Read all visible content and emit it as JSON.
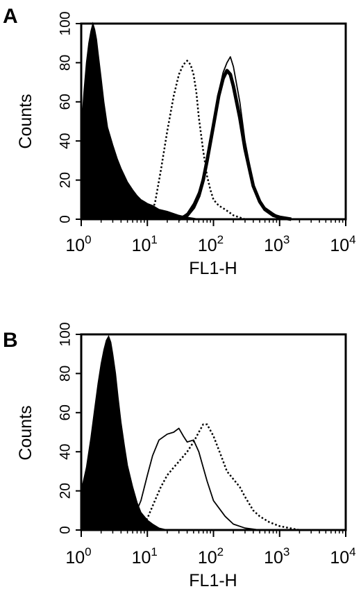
{
  "chart_data": [
    {
      "panel": "A",
      "type": "area",
      "xlabel": "FL1-H",
      "ylabel": "Counts",
      "xscale": "log",
      "xlim": [
        1,
        10000
      ],
      "ylim": [
        0,
        100
      ],
      "x_ticks": [
        {
          "base": "10",
          "exp": "0"
        },
        {
          "base": "10",
          "exp": "1"
        },
        {
          "base": "10",
          "exp": "2"
        },
        {
          "base": "10",
          "exp": "3"
        },
        {
          "base": "10",
          "exp": "4"
        }
      ],
      "y_ticks": [
        "0",
        "20",
        "40",
        "60",
        "80",
        "100"
      ],
      "grid": false,
      "series": [
        {
          "style": "filled-black",
          "x": [
            1,
            1.1,
            1.2,
            1.3,
            1.4,
            1.5,
            1.6,
            1.7,
            1.8,
            2,
            2.2,
            2.5,
            3,
            3.5,
            4,
            5,
            6,
            7,
            8,
            9,
            10,
            12,
            15,
            20,
            30,
            40,
            50,
            60
          ],
          "y": [
            45,
            65,
            80,
            90,
            96,
            100,
            97,
            92,
            85,
            72,
            60,
            47,
            38,
            31,
            26,
            19,
            15,
            12,
            10,
            9,
            8,
            7,
            5,
            4,
            2,
            1,
            0.5,
            0
          ]
        },
        {
          "style": "dotted",
          "x": [
            10,
            13,
            16,
            20,
            25,
            30,
            35,
            40,
            45,
            50,
            55,
            60,
            70,
            80,
            90,
            100,
            120,
            150,
            200,
            300
          ],
          "y": [
            0,
            8,
            25,
            45,
            63,
            74,
            79,
            81,
            79,
            74,
            65,
            52,
            35,
            22,
            15,
            10,
            7,
            5,
            2,
            0
          ]
        },
        {
          "style": "thin-solid",
          "x": [
            30,
            40,
            50,
            60,
            70,
            80,
            100,
            120,
            140,
            160,
            180,
            200,
            250,
            300,
            400,
            500,
            600,
            800,
            1000,
            1500
          ],
          "y": [
            0,
            3,
            8,
            14,
            22,
            32,
            50,
            65,
            75,
            80,
            83,
            78,
            60,
            40,
            18,
            10,
            6,
            3,
            1,
            0
          ]
        },
        {
          "style": "thick-solid",
          "x": [
            30,
            40,
            50,
            60,
            70,
            80,
            100,
            120,
            140,
            160,
            180,
            200,
            250,
            300,
            400,
            500,
            600,
            800,
            1000,
            1500
          ],
          "y": [
            0,
            2,
            6,
            12,
            20,
            30,
            48,
            63,
            72,
            76,
            74,
            68,
            52,
            36,
            17,
            9,
            5,
            2,
            1,
            0
          ]
        }
      ]
    },
    {
      "panel": "B",
      "type": "area",
      "xlabel": "FL1-H",
      "ylabel": "Counts",
      "xscale": "log",
      "xlim": [
        1,
        10000
      ],
      "ylim": [
        0,
        100
      ],
      "x_ticks": [
        {
          "base": "10",
          "exp": "0"
        },
        {
          "base": "10",
          "exp": "1"
        },
        {
          "base": "10",
          "exp": "2"
        },
        {
          "base": "10",
          "exp": "3"
        },
        {
          "base": "10",
          "exp": "4"
        }
      ],
      "y_ticks": [
        "0",
        "20",
        "40",
        "60",
        "80",
        "100"
      ],
      "grid": false,
      "series": [
        {
          "style": "filled-black",
          "x": [
            1,
            1.2,
            1.4,
            1.6,
            1.8,
            2,
            2.2,
            2.4,
            2.6,
            2.8,
            3,
            3.3,
            3.6,
            4,
            4.5,
            5,
            6,
            7,
            8,
            10,
            12,
            15,
            20
          ],
          "y": [
            20,
            32,
            47,
            62,
            75,
            85,
            92,
            97,
            99,
            96,
            90,
            80,
            68,
            55,
            43,
            33,
            22,
            14,
            9,
            5,
            3,
            1,
            0
          ]
        },
        {
          "style": "thin-solid",
          "x": [
            4,
            6,
            8,
            10,
            12,
            15,
            20,
            25,
            30,
            35,
            40,
            50,
            60,
            70,
            80,
            100,
            150,
            200,
            300,
            500
          ],
          "y": [
            0,
            5,
            15,
            28,
            38,
            46,
            49,
            50,
            52,
            48,
            45,
            46,
            40,
            32,
            25,
            15,
            7,
            3,
            1,
            0
          ]
        },
        {
          "style": "dotted",
          "x": [
            8,
            10,
            13,
            16,
            20,
            25,
            30,
            40,
            50,
            60,
            70,
            80,
            100,
            130,
            160,
            200,
            250,
            300,
            400,
            500,
            700,
            1000,
            2000
          ],
          "y": [
            0,
            6,
            15,
            22,
            28,
            32,
            35,
            40,
            45,
            50,
            54,
            54,
            48,
            38,
            30,
            26,
            22,
            17,
            10,
            7,
            4,
            2,
            0
          ]
        }
      ]
    }
  ]
}
